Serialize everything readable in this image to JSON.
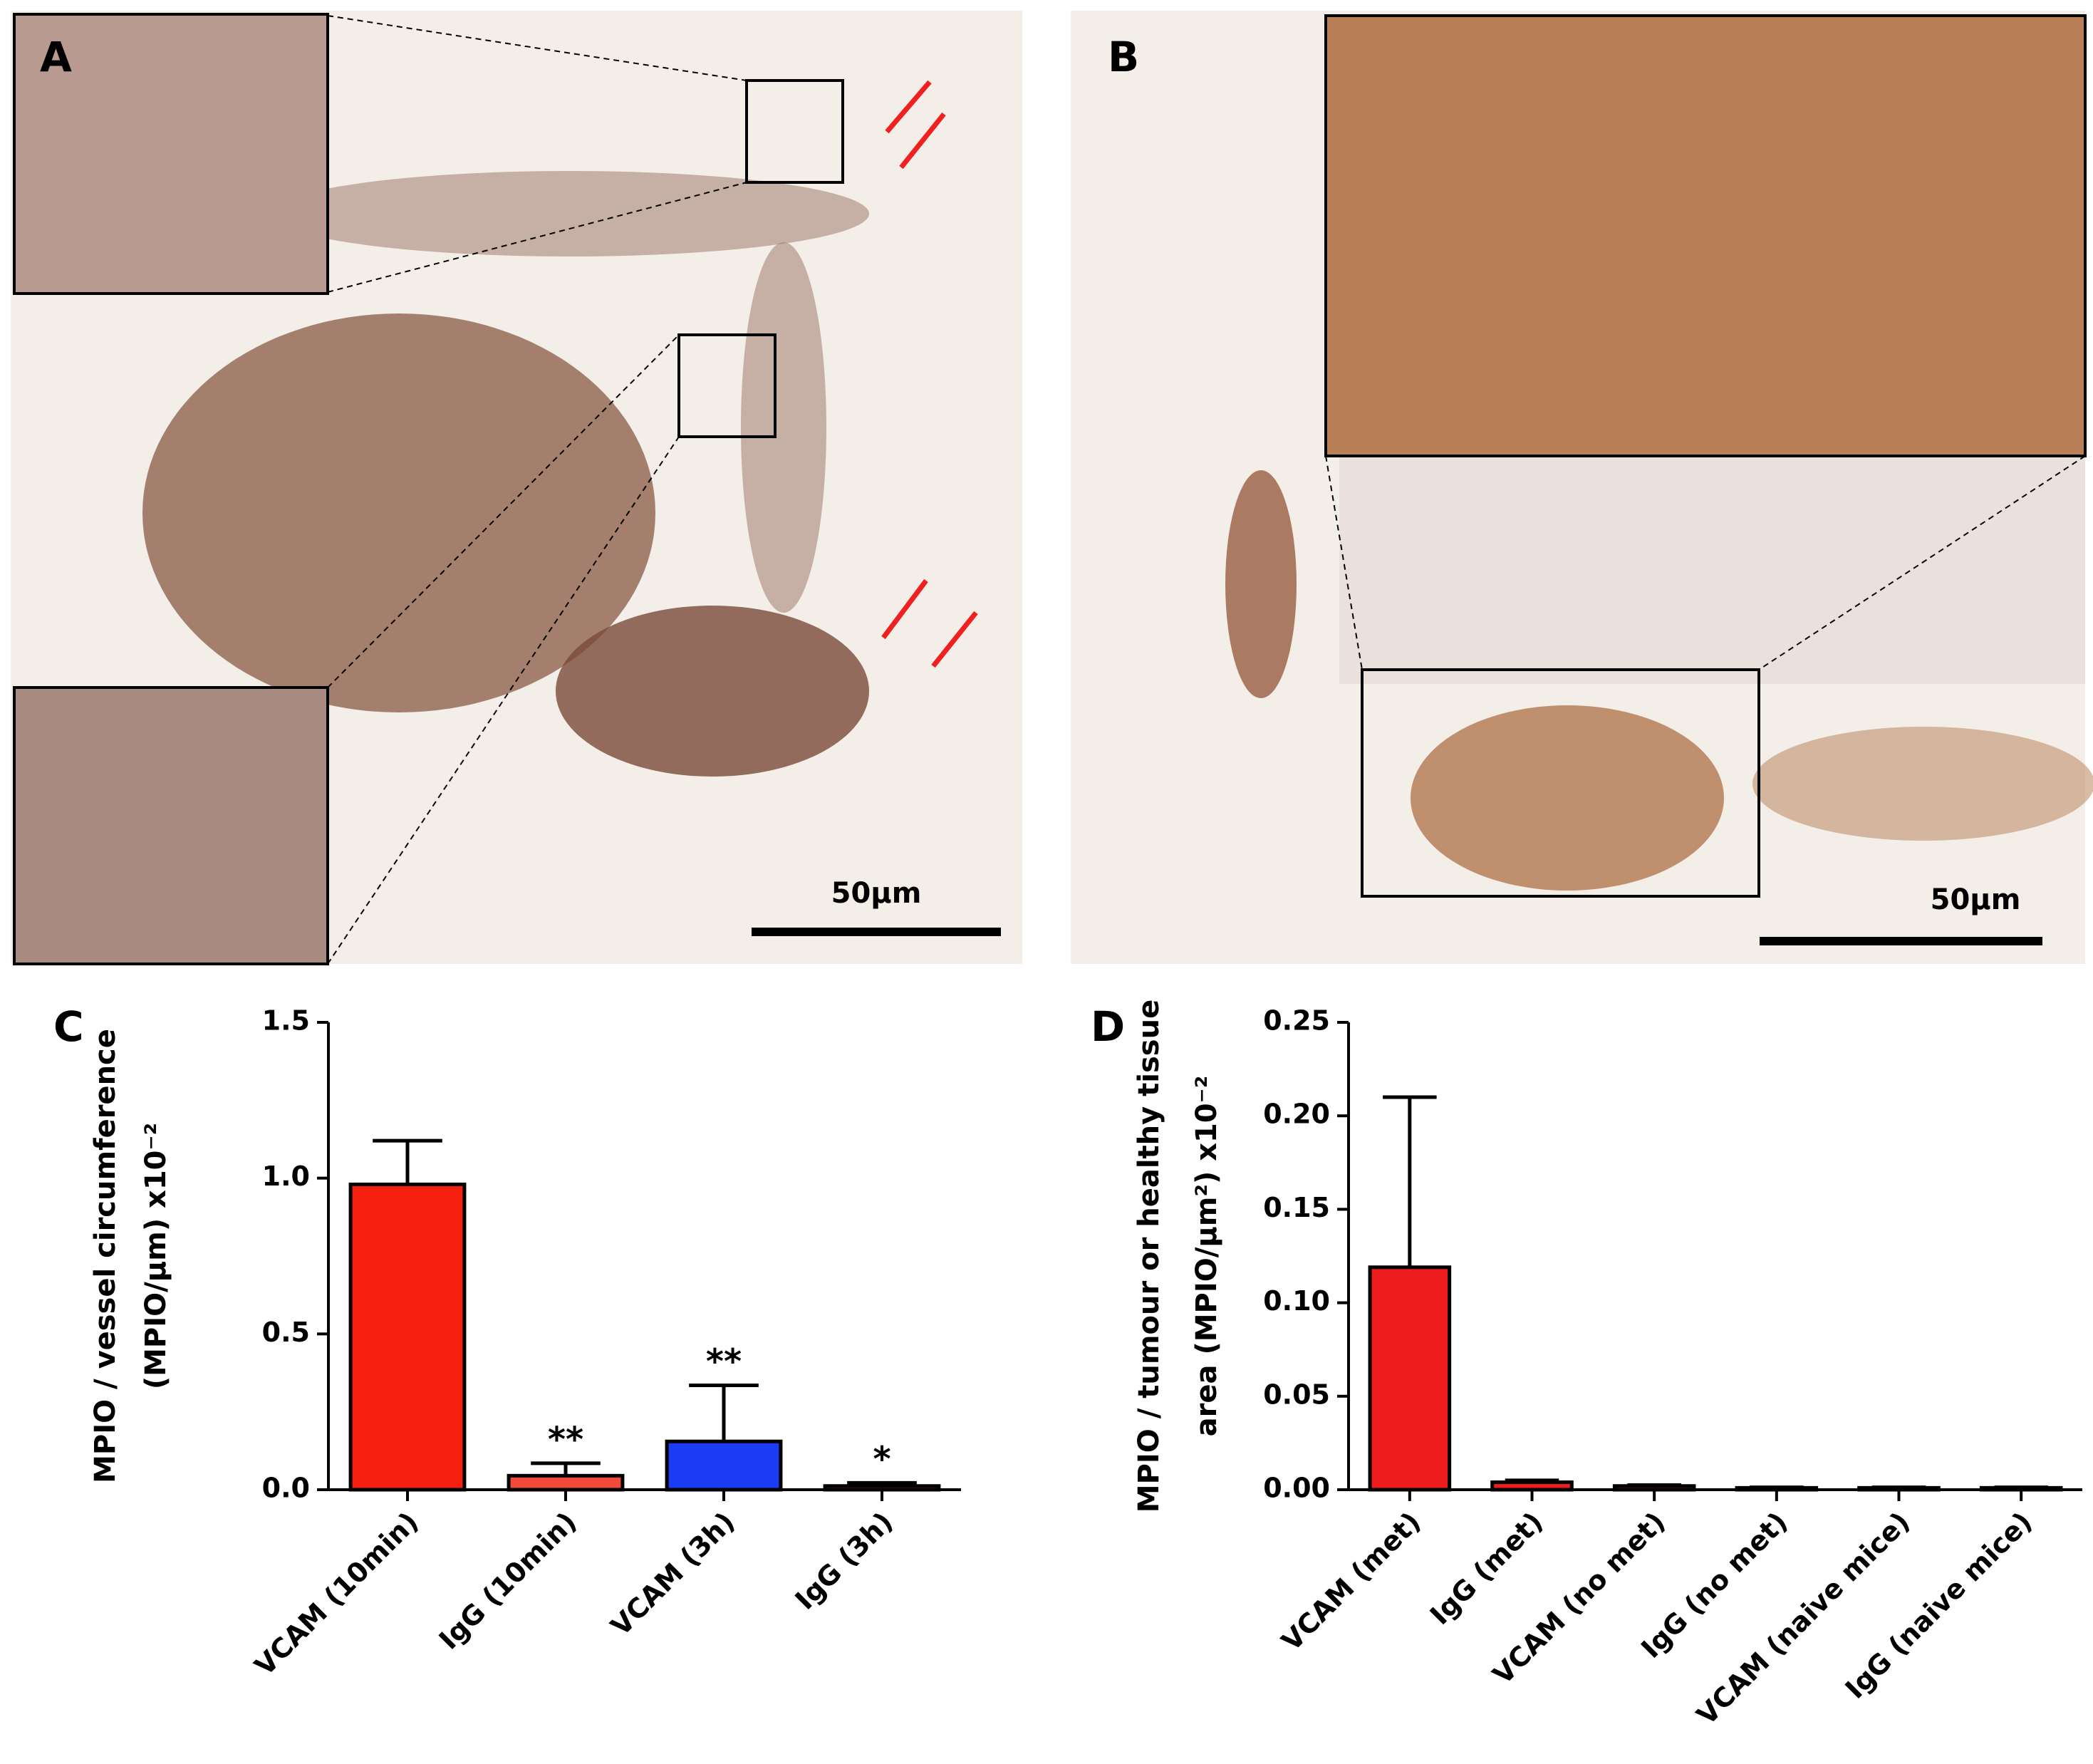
{
  "panels": [
    {
      "label": "A",
      "scale_bar": "50µm"
    },
    {
      "label": "B",
      "scale_bar": "50µm"
    }
  ],
  "chart_data": [
    {
      "type": "bar",
      "label": "C",
      "ylabel": [
        "MPIO / vessel circumference",
        "(MPIO/µm) x10⁻²"
      ],
      "categories": [
        "VCAM (10min)",
        "IgG (10min)",
        "VCAM (3h)",
        "IgG (3h)"
      ],
      "values": [
        0.98,
        0.045,
        0.155,
        0.012
      ],
      "errors": [
        0.14,
        0.04,
        0.18,
        0.01
      ],
      "colors": [
        "#f5200f",
        "#f04a3a",
        "#1a3cf5",
        "#f5200f"
      ],
      "annotations": [
        null,
        "**",
        "**",
        "*"
      ],
      "ylim": [
        0,
        1.5
      ],
      "yticks": [
        {
          "value": 0,
          "label": "0.0"
        },
        {
          "value": 0.5,
          "label": "0.5"
        },
        {
          "value": 1,
          "label": "1.0"
        },
        {
          "value": 1.5,
          "label": "1.5"
        }
      ]
    },
    {
      "type": "bar",
      "label": "D",
      "ylabel": [
        "MPIO / tumour or healthy tissue",
        "area (MPIO/µm²) x10⁻²"
      ],
      "categories": [
        "VCAM (met)",
        "IgG (met)",
        "VCAM (no met)",
        "IgG (no met)",
        "VCAM (naive mice)",
        "IgG (naive mice)"
      ],
      "values": [
        0.119,
        0.004,
        0.002,
        0.001,
        0.001,
        0.001
      ],
      "errors": [
        0.091,
        0.001,
        0.0005,
        0.0003,
        0.0003,
        0.0003
      ],
      "colors": [
        "#ee1c1c",
        "#ee1c1c",
        "#ee1c1c",
        "#ee1c1c",
        "#ee1c1c",
        "#ee1c1c"
      ],
      "ylim": [
        0,
        0.25
      ],
      "yticks": [
        {
          "value": 0,
          "label": "0.00"
        },
        {
          "value": 0.05,
          "label": "0.05"
        },
        {
          "value": 0.1,
          "label": "0.10"
        },
        {
          "value": 0.15,
          "label": "0.15"
        },
        {
          "value": 0.2,
          "label": "0.20"
        },
        {
          "value": 0.25,
          "label": "0.25"
        }
      ]
    }
  ]
}
